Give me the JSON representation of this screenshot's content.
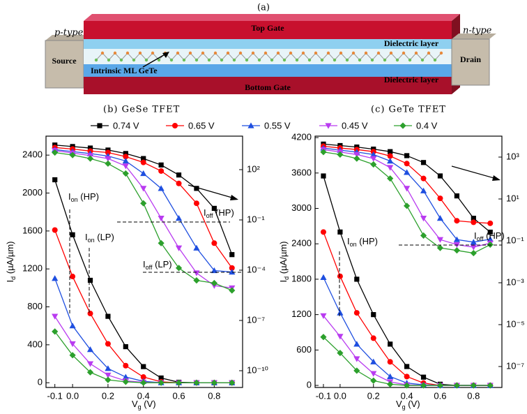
{
  "schematic": {
    "label": "(a)",
    "top_gate": "Top Gate",
    "bottom_gate": "Bottom Gate",
    "source_type": "p-type",
    "source": "Source",
    "drain_type": "n-type",
    "drain": "Drain",
    "dielectric_top": "Dielectric layer",
    "dielectric_bottom": "Dielectric layer",
    "channel": "Intrinsic ML GeTe"
  },
  "chart_data": [
    {
      "type": "line",
      "title": "(b) GeSe TFET",
      "x_label": {
        "text": "V",
        "sub": "g",
        "rest": " (V)"
      },
      "y_label": {
        "text": "I",
        "sub": "d",
        "rest": " (µA/µm)"
      },
      "x": [
        -0.1,
        0,
        0.1,
        0.2,
        0.3,
        0.4,
        0.5,
        0.6,
        0.7,
        0.8,
        0.9
      ],
      "xlim": [
        -0.15,
        0.96
      ],
      "xticks": [
        -0.1,
        {
          "value": 0,
          "label": "0.0"
        },
        0.2,
        0.4,
        0.6,
        0.8
      ],
      "ylim": [
        -50,
        2600
      ],
      "yticks": [
        0,
        400,
        800,
        1200,
        1600,
        2000,
        2400
      ],
      "y2lim": [
        1e-11,
        10000
      ],
      "y2log": true,
      "y2ticks": [
        {
          "value": 100,
          "label": "10²"
        },
        {
          "value": 0.1,
          "label": "10⁻¹"
        },
        {
          "value": 0.0001,
          "label": "10⁻⁴"
        },
        {
          "value": 1e-07,
          "label": "10⁻⁷"
        },
        {
          "value": 1e-10,
          "label": "10⁻¹⁰"
        }
      ],
      "annotations": [
        {
          "text": "I",
          "sub": "on",
          "rest": " (HP)"
        },
        {
          "text": "I",
          "sub": "on",
          "rest": " (LP)"
        },
        {
          "text": "I",
          "sub": "off",
          "rest": " (HP)"
        },
        {
          "text": "I",
          "sub": "off",
          "rest": " (LP)"
        }
      ],
      "series": [
        {
          "name": "0.74 V",
          "color": "#000000",
          "marker": "square",
          "values": [
            2140,
            1560,
            1080,
            700,
            380,
            170,
            50,
            5,
            0,
            0,
            0
          ]
        },
        {
          "name": "0.65 V",
          "color": "#ff0000",
          "marker": "circle",
          "values": [
            1610,
            1120,
            730,
            410,
            180,
            60,
            10,
            0,
            0,
            0,
            0
          ]
        },
        {
          "name": "0.55 V",
          "color": "#1f4fe0",
          "marker": "triangle-up",
          "values": [
            1100,
            600,
            350,
            150,
            60,
            15,
            0,
            0,
            0,
            0,
            0
          ]
        },
        {
          "name": "0.45 V",
          "color": "#b93bf0",
          "marker": "triangle-down",
          "values": [
            700,
            410,
            200,
            80,
            20,
            5,
            0,
            0,
            0,
            0,
            0
          ]
        },
        {
          "name": "0.4 V",
          "color": "#2ca02c",
          "marker": "diamond",
          "values": [
            540,
            290,
            110,
            30,
            10,
            0,
            0,
            0,
            0,
            0,
            0
          ]
        },
        {
          "color": "#000000",
          "marker": "square",
          "axis": "y2",
          "values": [
            2950,
            2400,
            1950,
            1480,
            920,
            460,
            190,
            48,
            7.6,
            0.49,
            0.00085
          ]
        },
        {
          "color": "#ff0000",
          "marker": "circle",
          "axis": "y2",
          "values": [
            2090,
            1700,
            1290,
            1050,
            600,
            270,
            83,
            15,
            0.98,
            0.0041,
            0.000135
          ]
        },
        {
          "color": "#1f4fe0",
          "marker": "triangle-up",
          "axis": "y2",
          "values": [
            1580,
            1200,
            910,
            650,
            330,
            59,
            7.6,
            0.126,
            0.0021,
            9.5e-05,
            7.8e-05
          ]
        },
        {
          "color": "#b93bf0",
          "marker": "triangle-down",
          "axis": "y2",
          "values": [
            1380,
            980,
            690,
            460,
            165,
            7.6,
            0.126,
            0.0021,
            6.8e-05,
            1.2e-05,
            8.7e-06
          ]
        },
        {
          "color": "#2ca02c",
          "marker": "diamond",
          "axis": "y2",
          "values": [
            1050,
            740,
            460,
            230,
            59,
            0.98,
            0.0041,
            0.000135,
            2.45e-05,
            1.7e-05,
            6.2e-06
          ]
        }
      ]
    },
    {
      "type": "line",
      "title": "(c) GeTe TFET",
      "x_label": {
        "text": "V",
        "sub": "g",
        "rest": " (V)"
      },
      "y_label": {
        "text": "I",
        "sub": "d",
        "rest": " (µA/µm)"
      },
      "x": [
        -0.1,
        0,
        0.1,
        0.2,
        0.3,
        0.4,
        0.5,
        0.6,
        0.7,
        0.8,
        0.9
      ],
      "xlim": [
        -0.15,
        0.97
      ],
      "xticks": [
        -0.1,
        {
          "value": 0,
          "label": "0.0"
        },
        0.2,
        0.4,
        0.6,
        0.8
      ],
      "ylim": [
        -35,
        4225
      ],
      "yticks": [
        0,
        600,
        1200,
        1800,
        2400,
        3000,
        3600,
        4200
      ],
      "y2lim": [
        1e-08,
        10000
      ],
      "y2log": true,
      "y2ticks": [
        {
          "value": 1000,
          "label": "10³"
        },
        {
          "value": 10,
          "label": "10¹"
        },
        {
          "value": 0.1,
          "label": "10⁻¹"
        },
        {
          "value": 0.001,
          "label": "10⁻³"
        },
        {
          "value": 1e-05,
          "label": "10⁻⁵"
        },
        {
          "value": 1e-07,
          "label": "10⁻⁷"
        }
      ],
      "annotations": [
        {
          "text": "I",
          "sub": "on",
          "rest": " (HP)"
        },
        {
          "text": "I",
          "sub": "off",
          "rest": " (HP)"
        }
      ],
      "series": [
        {
          "name": "0.74 V",
          "color": "#000000",
          "marker": "square",
          "values": [
            3550,
            2600,
            1800,
            1200,
            700,
            320,
            140,
            20,
            0,
            0,
            0
          ]
        },
        {
          "name": "0.65 V",
          "color": "#ff0000",
          "marker": "circle",
          "values": [
            2600,
            1850,
            1230,
            800,
            400,
            150,
            40,
            0,
            0,
            0,
            0
          ]
        },
        {
          "name": "0.55 V",
          "color": "#1f4fe0",
          "marker": "triangle-up",
          "values": [
            1830,
            1230,
            700,
            400,
            150,
            40,
            10,
            0,
            0,
            0,
            0
          ]
        },
        {
          "name": "0.45 V",
          "color": "#b93bf0",
          "marker": "triangle-down",
          "values": [
            1180,
            830,
            450,
            200,
            60,
            10,
            0,
            0,
            0,
            0,
            0
          ]
        },
        {
          "name": "0.4 V",
          "color": "#2ca02c",
          "marker": "diamond",
          "values": [
            820,
            550,
            250,
            80,
            20,
            0,
            0,
            0,
            0,
            0,
            0
          ]
        },
        {
          "color": "#000000",
          "marker": "square",
          "axis": "y2",
          "values": [
            4170,
            3550,
            3020,
            2400,
            1820,
            1170,
            550,
            126,
            14,
            1.2,
            0.26
          ]
        },
        {
          "color": "#ff0000",
          "marker": "circle",
          "axis": "y2",
          "values": [
            3310,
            2700,
            2290,
            1820,
            1120,
            490,
            95,
            10.7,
            0.91,
            0.77,
            0.69
          ]
        },
        {
          "color": "#1f4fe0",
          "marker": "triangle-up",
          "axis": "y2",
          "values": [
            2700,
            2140,
            1740,
            1320,
            650,
            186,
            24.5,
            1.2,
            0.115,
            0.087,
            0.12
          ]
        },
        {
          "color": "#b93bf0",
          "marker": "triangle-down",
          "axis": "y2",
          "values": [
            2290,
            1740,
            1320,
            850,
            316,
            32,
            1.2,
            0.115,
            0.066,
            0.05,
            0.078
          ]
        },
        {
          "color": "#2ca02c",
          "marker": "diamond",
          "axis": "y2",
          "values": [
            1740,
            1320,
            850,
            447,
            95,
            4.7,
            0.18,
            0.046,
            0.035,
            0.026,
            0.066
          ]
        }
      ]
    }
  ]
}
